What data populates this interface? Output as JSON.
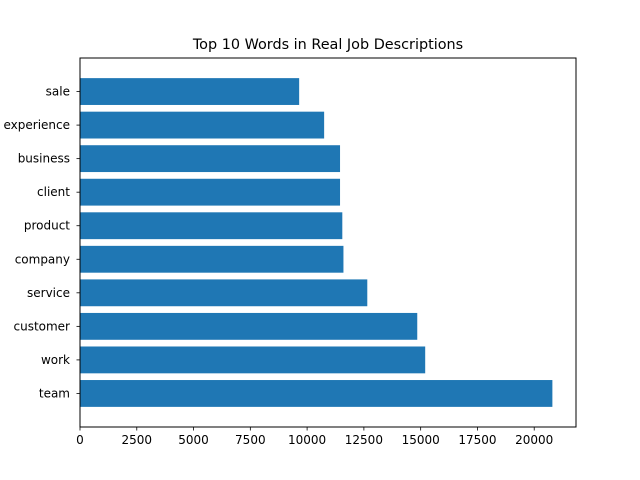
{
  "chart_data": {
    "type": "bar",
    "orientation": "horizontal",
    "title": "Top 10 Words in Real Job Descriptions",
    "xlabel": "",
    "ylabel": "",
    "categories": [
      "team",
      "work",
      "customer",
      "service",
      "company",
      "product",
      "client",
      "business",
      "experience",
      "sale"
    ],
    "values": [
      20800,
      15200,
      14850,
      12650,
      11600,
      11550,
      11450,
      11450,
      10750,
      9650
    ],
    "xlim": [
      0,
      21840
    ],
    "xticks": [
      0,
      2500,
      5000,
      7500,
      10000,
      12500,
      15000,
      17500,
      20000
    ],
    "grid": false,
    "bar_color": "#1f77b4"
  }
}
